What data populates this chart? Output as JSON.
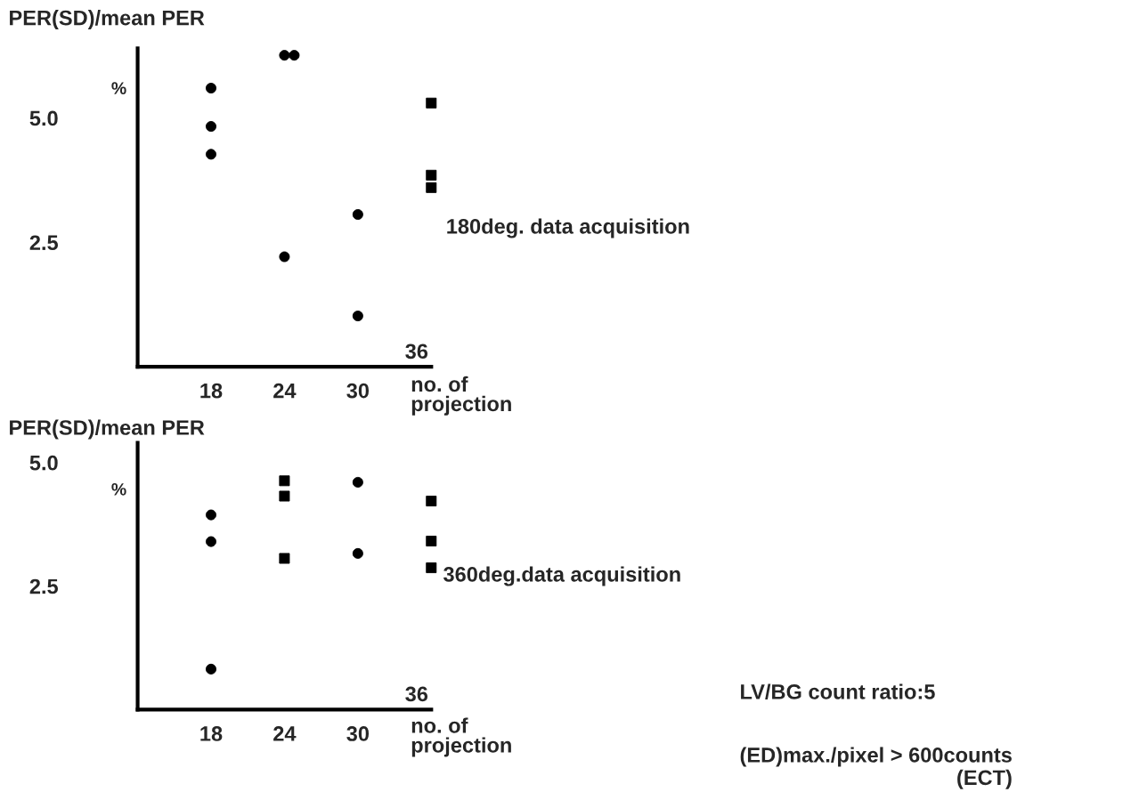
{
  "chart_data": [
    {
      "type": "scatter",
      "ylabel": "PER(SD)/mean PER",
      "xlabel": "no. of\nprojection",
      "xlim": [
        12,
        36
      ],
      "xticks": [
        18,
        24,
        30
      ],
      "ylim": [
        0,
        6.4
      ],
      "yticks": [
        2.5,
        {
          "value": 5,
          "label": "5.0"
        }
      ],
      "grid": false,
      "legend": false,
      "annotations": [
        "%",
        "180deg. data acquisition",
        "36"
      ],
      "series": [
        {
          "color": "#000000",
          "marker": "circle",
          "x": [
            18,
            18,
            18,
            24,
            24,
            24.8,
            30,
            30
          ],
          "values": [
            5.6,
            4.83,
            4.27,
            2.21,
            6.26,
            6.26,
            3.06,
            1.02
          ]
        },
        {
          "color": "#000000",
          "marker": "square",
          "x": [
            36,
            36,
            36
          ],
          "values": [
            5.3,
            3.85,
            3.6
          ]
        }
      ]
    },
    {
      "type": "scatter",
      "ylabel": "PER(SD)/mean PER",
      "xlabel": "no. of\nprojection",
      "xlim": [
        12,
        36
      ],
      "xticks": [
        18,
        24,
        30
      ],
      "ylim": [
        0,
        5.4
      ],
      "yticks": [
        2.5,
        {
          "value": 5,
          "label": "5.0"
        }
      ],
      "grid": false,
      "legend": false,
      "annotations": [
        "%",
        "360deg.data acquisition",
        "LV/BG count ratio:5",
        "(ED)max./pixel > 600counts\n(ECT)",
        "36"
      ],
      "series": [
        {
          "color": "#000000",
          "marker": "circle",
          "x": [
            18,
            18,
            18,
            30,
            30
          ],
          "values": [
            3.94,
            3.4,
            0.82,
            4.6,
            3.16
          ]
        },
        {
          "color": "#000000",
          "marker": "square",
          "x": [
            24,
            24,
            24,
            36,
            36,
            36
          ],
          "values": [
            4.63,
            4.32,
            3.06,
            4.22,
            3.41,
            2.87
          ]
        }
      ]
    }
  ]
}
